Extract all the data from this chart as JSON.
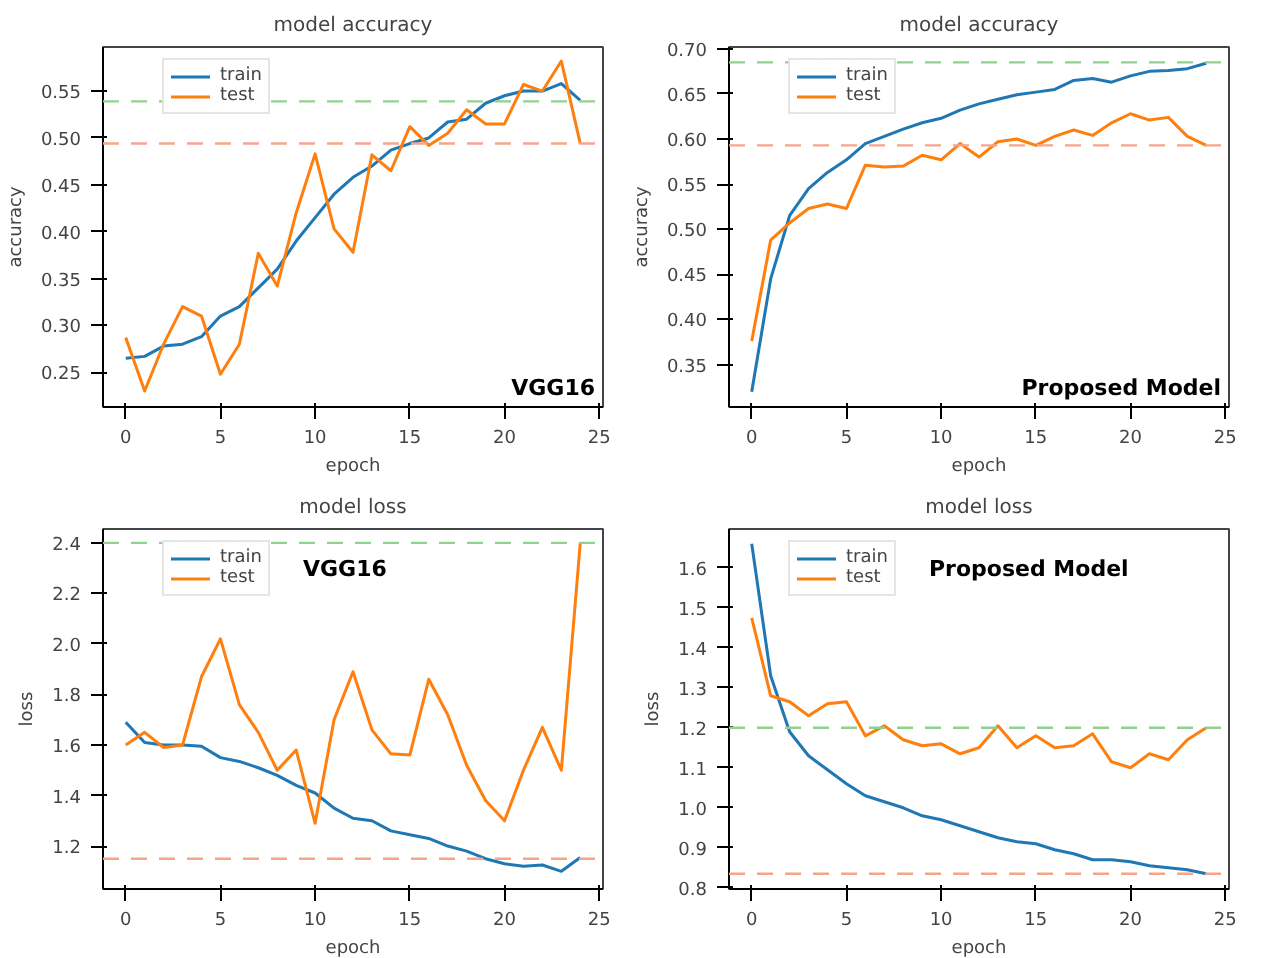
{
  "chart_data": [
    {
      "type": "line",
      "title": "model accuracy",
      "xlabel": "epoch",
      "ylabel": "accuracy",
      "x": [
        0,
        1,
        2,
        3,
        4,
        5,
        6,
        7,
        8,
        9,
        10,
        11,
        12,
        13,
        14,
        15,
        16,
        17,
        18,
        19,
        20,
        21,
        22,
        23,
        24
      ],
      "xlim": [
        -1.2,
        25.2
      ],
      "xticks": [
        0,
        5,
        10,
        15,
        20,
        25
      ],
      "ylim": [
        0.213,
        0.597
      ],
      "yticks": [
        0.25,
        {
          "value": 0.3,
          "label": "0.30"
        },
        0.35,
        {
          "value": 0.4,
          "label": "0.40"
        },
        0.45,
        {
          "value": 0.5,
          "label": "0.50"
        },
        0.55
      ],
      "grid": false,
      "legend": "top left",
      "annotations": [
        "VGG16"
      ],
      "series": [
        {
          "name": "train",
          "color": "#1f77b4",
          "values": [
            0.265,
            0.267,
            0.278,
            0.28,
            0.288,
            0.31,
            0.32,
            0.34,
            0.36,
            0.39,
            0.415,
            0.44,
            0.458,
            0.47,
            0.487,
            0.494,
            0.5,
            0.517,
            0.52,
            0.537,
            0.545,
            0.55,
            0.55,
            0.558,
            0.54
          ]
        },
        {
          "name": "test",
          "color": "#ff7f0e",
          "values": [
            0.287,
            0.23,
            0.28,
            0.32,
            0.31,
            0.248,
            0.28,
            0.377,
            0.342,
            0.42,
            0.483,
            0.403,
            0.378,
            0.482,
            0.465,
            0.512,
            0.492,
            0.505,
            0.53,
            0.515,
            0.515,
            0.557,
            0.55,
            0.582,
            0.494
          ]
        }
      ],
      "ref_lines": [
        {
          "axis": "y",
          "value": 0.539,
          "color": "#8fd18f",
          "line_style": "dashed"
        },
        {
          "axis": "y",
          "value": 0.494,
          "color": "#f5a58a",
          "line_style": "dashed"
        }
      ]
    },
    {
      "type": "line",
      "title": "model accuracy",
      "xlabel": "epoch",
      "ylabel": "accuracy",
      "x": [
        0,
        1,
        2,
        3,
        4,
        5,
        6,
        7,
        8,
        9,
        10,
        11,
        12,
        13,
        14,
        15,
        16,
        17,
        18,
        19,
        20,
        21,
        22,
        23,
        24
      ],
      "xlim": [
        -1.2,
        25.2
      ],
      "xticks": [
        0,
        5,
        10,
        15,
        20,
        25
      ],
      "ylim": [
        0.303,
        0.702
      ],
      "yticks": [
        0.35,
        {
          "value": 0.4,
          "label": "0.40"
        },
        0.45,
        {
          "value": 0.5,
          "label": "0.50"
        },
        0.55,
        {
          "value": 0.6,
          "label": "0.60"
        },
        0.65,
        {
          "value": 0.7,
          "label": "0.70"
        }
      ],
      "grid": false,
      "legend": "top left",
      "annotations": [
        "Proposed Model"
      ],
      "series": [
        {
          "name": "train",
          "color": "#1f77b4",
          "values": [
            0.32,
            0.445,
            0.515,
            0.545,
            0.563,
            0.577,
            0.595,
            0.603,
            0.611,
            0.618,
            0.623,
            0.632,
            0.639,
            0.644,
            0.649,
            0.652,
            0.655,
            0.665,
            0.667,
            0.663,
            0.67,
            0.675,
            0.676,
            0.678,
            0.684
          ]
        },
        {
          "name": "test",
          "color": "#ff7f0e",
          "values": [
            0.376,
            0.488,
            0.507,
            0.523,
            0.528,
            0.523,
            0.571,
            0.569,
            0.57,
            0.582,
            0.577,
            0.595,
            0.58,
            0.597,
            0.6,
            0.593,
            0.603,
            0.61,
            0.604,
            0.618,
            0.628,
            0.621,
            0.624,
            0.603,
            0.593
          ]
        }
      ],
      "ref_lines": [
        {
          "axis": "y",
          "value": 0.685,
          "color": "#8fd18f",
          "line_style": "dashed"
        },
        {
          "axis": "y",
          "value": 0.593,
          "color": "#f5a58a",
          "line_style": "dashed"
        }
      ]
    },
    {
      "type": "line",
      "title": "model loss",
      "xlabel": "epoch",
      "ylabel": "loss",
      "x": [
        0,
        1,
        2,
        3,
        4,
        5,
        6,
        7,
        8,
        9,
        10,
        11,
        12,
        13,
        14,
        15,
        16,
        17,
        18,
        19,
        20,
        21,
        22,
        23,
        24
      ],
      "xlim": [
        -1.2,
        25.2
      ],
      "xticks": [
        0,
        5,
        10,
        15,
        20,
        25
      ],
      "ylim": [
        1.03,
        2.455
      ],
      "yticks": [
        1.2,
        1.4,
        1.6,
        1.8,
        {
          "value": 2,
          "label": "2.0"
        },
        2.2,
        2.4
      ],
      "grid": false,
      "legend": "top left",
      "annotations": [
        "VGG16"
      ],
      "series": [
        {
          "name": "train",
          "color": "#1f77b4",
          "values": [
            1.69,
            1.61,
            1.6,
            1.6,
            1.595,
            1.55,
            1.535,
            1.51,
            1.48,
            1.44,
            1.41,
            1.35,
            1.31,
            1.3,
            1.26,
            1.245,
            1.23,
            1.2,
            1.18,
            1.15,
            1.13,
            1.12,
            1.125,
            1.1,
            1.155
          ]
        },
        {
          "name": "test",
          "color": "#ff7f0e",
          "values": [
            1.6,
            1.65,
            1.59,
            1.6,
            1.87,
            2.02,
            1.76,
            1.65,
            1.5,
            1.58,
            1.29,
            1.7,
            1.89,
            1.66,
            1.565,
            1.56,
            1.86,
            1.72,
            1.52,
            1.38,
            1.3,
            1.5,
            1.67,
            1.5,
            2.4
          ]
        }
      ],
      "ref_lines": [
        {
          "axis": "y",
          "value": 2.4,
          "color": "#8fd18f",
          "line_style": "dashed"
        },
        {
          "axis": "y",
          "value": 1.15,
          "color": "#f5a58a",
          "line_style": "dashed"
        }
      ]
    },
    {
      "type": "line",
      "title": "model loss",
      "xlabel": "epoch",
      "ylabel": "loss",
      "x": [
        0,
        1,
        2,
        3,
        4,
        5,
        6,
        7,
        8,
        9,
        10,
        11,
        12,
        13,
        14,
        15,
        16,
        17,
        18,
        19,
        20,
        21,
        22,
        23,
        24
      ],
      "xlim": [
        -1.2,
        25.2
      ],
      "xticks": [
        0,
        5,
        10,
        15,
        20,
        25
      ],
      "ylim": [
        0.797,
        1.697
      ],
      "yticks": [
        0.8,
        0.9,
        {
          "value": 1,
          "label": "1.0"
        },
        1.1,
        1.2,
        1.3,
        1.4,
        1.5,
        1.6
      ],
      "grid": false,
      "legend": "top left",
      "annotations": [
        "Proposed Model"
      ],
      "series": [
        {
          "name": "train",
          "color": "#1f77b4",
          "values": [
            1.66,
            1.33,
            1.19,
            1.13,
            1.095,
            1.06,
            1.03,
            1.015,
            1.0,
            0.98,
            0.97,
            0.955,
            0.94,
            0.925,
            0.915,
            0.91,
            0.895,
            0.885,
            0.87,
            0.87,
            0.865,
            0.855,
            0.85,
            0.845,
            0.835
          ]
        },
        {
          "name": "test",
          "color": "#ff7f0e",
          "values": [
            1.475,
            1.28,
            1.265,
            1.23,
            1.26,
            1.265,
            1.18,
            1.205,
            1.17,
            1.155,
            1.16,
            1.135,
            1.15,
            1.205,
            1.15,
            1.18,
            1.15,
            1.155,
            1.185,
            1.115,
            1.1,
            1.135,
            1.12,
            1.17,
            1.2
          ]
        }
      ],
      "ref_lines": [
        {
          "axis": "y",
          "value": 1.2,
          "color": "#8fd18f",
          "line_style": "dashed"
        },
        {
          "axis": "y",
          "value": 0.835,
          "color": "#f5a58a",
          "line_style": "dashed"
        }
      ]
    }
  ]
}
